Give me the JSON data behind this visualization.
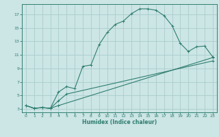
{
  "xlabel": "Humidex (Indice chaleur)",
  "background_color": "#cce5e5",
  "grid_color": "#aacccc",
  "line_color": "#2e7d6e",
  "xlim": [
    -0.5,
    23.5
  ],
  "ylim": [
    2.5,
    18.5
  ],
  "xticks": [
    0,
    1,
    2,
    3,
    4,
    5,
    6,
    7,
    8,
    9,
    10,
    11,
    12,
    13,
    14,
    15,
    16,
    17,
    18,
    19,
    20,
    21,
    22,
    23
  ],
  "yticks": [
    3,
    5,
    7,
    9,
    11,
    13,
    15,
    17
  ],
  "line1_x": [
    0,
    1,
    2,
    3,
    4,
    5,
    6,
    7,
    8,
    9,
    10,
    11,
    12,
    13,
    14,
    15,
    16,
    17,
    18,
    19,
    20,
    21,
    22,
    23
  ],
  "line1_y": [
    3.5,
    3.1,
    3.2,
    3.1,
    5.5,
    6.3,
    6.0,
    9.3,
    9.5,
    12.5,
    14.3,
    15.5,
    16.0,
    17.1,
    17.8,
    17.8,
    17.6,
    16.8,
    15.3,
    12.7,
    11.5,
    12.2,
    12.3,
    10.7
  ],
  "line2_x": [
    0,
    1,
    2,
    3,
    4,
    23
  ],
  "line2_y": [
    3.5,
    3.1,
    3.2,
    3.1,
    3.5,
    10.6
  ],
  "line3_x": [
    0,
    1,
    2,
    3,
    4,
    5,
    23
  ],
  "line3_y": [
    3.5,
    3.1,
    3.2,
    3.1,
    4.2,
    5.2,
    10.1
  ]
}
